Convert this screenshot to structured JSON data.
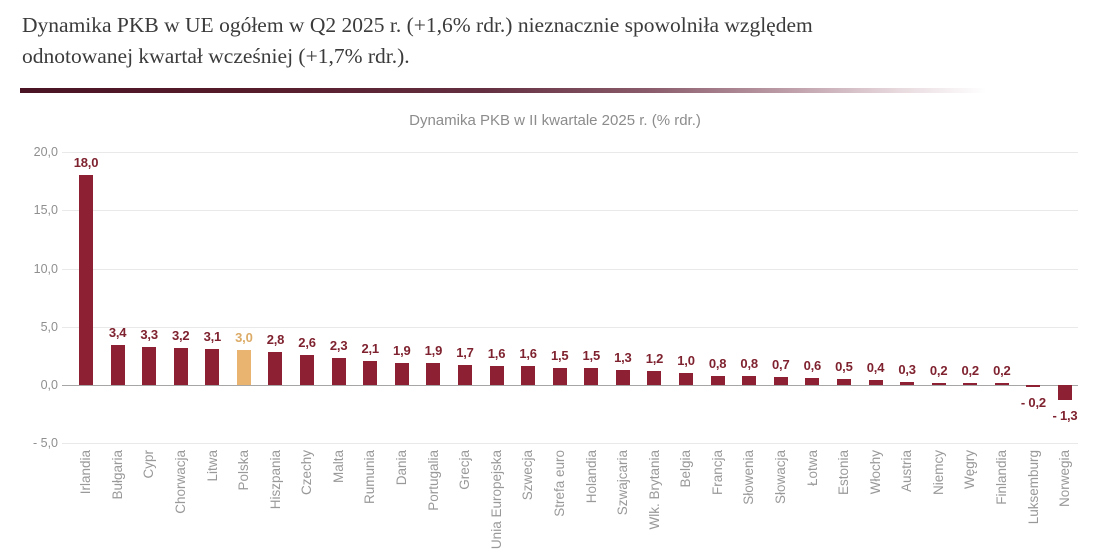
{
  "header": {
    "title_lines": [
      "Dynamika PKB w UE ogółem w Q2 2025 r. (+1,6% rdr.) nieznacznie spowolniła względem",
      "odnotowanej kwartał wcześniej (+1,7% rdr.)."
    ]
  },
  "chart_data": {
    "type": "bar",
    "title": "Dynamika PKB w II kwartale 2025 r. (% rdr.)",
    "categories": [
      "Irlandia",
      "Bułgaria",
      "Cypr",
      "Chorwacja",
      "Litwa",
      "Polska",
      "Hiszpania",
      "Czechy",
      "Malta",
      "Rumunia",
      "Dania",
      "Portugalia",
      "Grecja",
      "Unia Europejska",
      "Szwecja",
      "Strefa euro",
      "Holandia",
      "Szwajcaria",
      "Wlk. Brytania",
      "Belgia",
      "Francja",
      "Słowenia",
      "Słowacja",
      "Łotwa",
      "Estonia",
      "Włochy",
      "Austria",
      "Niemcy",
      "Węgry",
      "Finlandia",
      "Luksemburg",
      "Norwegia"
    ],
    "values": [
      18.0,
      3.4,
      3.3,
      3.2,
      3.1,
      3.0,
      2.8,
      2.6,
      2.3,
      2.1,
      1.9,
      1.9,
      1.7,
      1.6,
      1.6,
      1.5,
      1.5,
      1.3,
      1.2,
      1.0,
      0.8,
      0.8,
      0.7,
      0.6,
      0.5,
      0.4,
      0.3,
      0.2,
      0.2,
      0.2,
      -0.2,
      -1.3
    ],
    "value_labels": [
      "18,0",
      "3,4",
      "3,3",
      "3,2",
      "3,1",
      "3,0",
      "2,8",
      "2,6",
      "2,3",
      "2,1",
      "1,9",
      "1,9",
      "1,7",
      "1,6",
      "1,6",
      "1,5",
      "1,5",
      "1,3",
      "1,2",
      "1,0",
      "0,8",
      "0,8",
      "0,7",
      "0,6",
      "0,5",
      "0,4",
      "0,3",
      "0,2",
      "0,2",
      "0,2",
      "- 0,2",
      "- 1,3"
    ],
    "highlight_category": "Polska",
    "highlight_index": 5,
    "ylim": [
      -5,
      20
    ],
    "yticks": [
      20,
      15,
      10,
      5,
      0,
      -5
    ],
    "ytick_labels": [
      "20,0",
      "15,0",
      "10,0",
      "5,0",
      "0,0",
      "- 5,0"
    ],
    "grid": true,
    "legend": "none",
    "xlabel": "",
    "ylabel": "",
    "colors": {
      "bar": "#8d2033",
      "highlight_bar": "#e9b470",
      "value_label": "#7f222f",
      "highlight_value_label": "#dcab67",
      "axis_line": "#a6a6a6",
      "gridline": "#e9e9e9",
      "ytick_text": "#8f8f8f",
      "category_text": "#999999",
      "chart_title_text": "#8c8c8c",
      "header_text": "#3b3b3b"
    }
  }
}
